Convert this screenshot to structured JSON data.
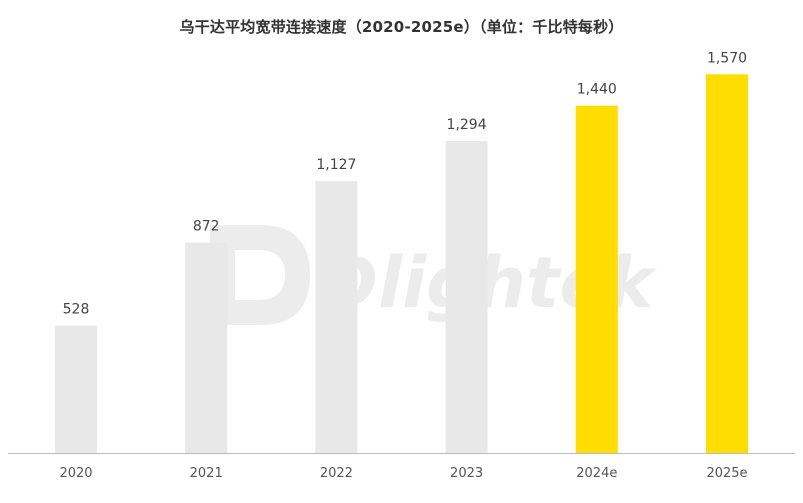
{
  "title": "乌干达平均宽带连接速度（2020-2025e）（单位：千比特每秒）",
  "watermark": "Dlightek",
  "colors": {
    "actual": "#E8E8E8",
    "forecast": "#FFDD00",
    "axis": "#BBBBBB"
  },
  "chart_data": {
    "type": "bar",
    "title": "乌干达平均宽带连接速度（2020-2025e）（单位：千比特每秒）",
    "categories": [
      "2020",
      "2021",
      "2022",
      "2023",
      "2024e",
      "2025e"
    ],
    "values": [
      528,
      872,
      1127,
      1294,
      1440,
      1570
    ],
    "value_labels": [
      "528",
      "872",
      "1,127",
      "1,294",
      "1,440",
      "1,570"
    ],
    "forecast": [
      false,
      false,
      false,
      false,
      true,
      true
    ],
    "xlabel": "",
    "ylabel": "",
    "ylim": [
      0,
      1650
    ],
    "grid": false,
    "legend": "none"
  }
}
